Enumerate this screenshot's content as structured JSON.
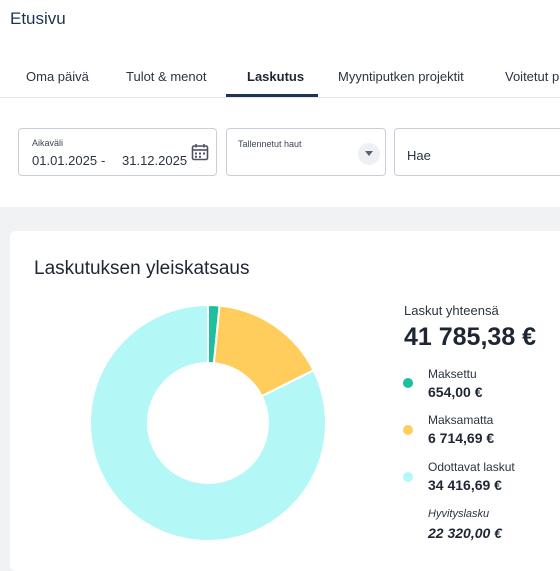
{
  "header": {
    "title": "Etusivu"
  },
  "tabs": [
    {
      "label": "Oma päivä",
      "active": false
    },
    {
      "label": "Tulot & menot",
      "active": false
    },
    {
      "label": "Laskutus",
      "active": true
    },
    {
      "label": "Myyntiputken projektit",
      "active": false
    },
    {
      "label": "Voitetut p",
      "active": false
    }
  ],
  "filters": {
    "date_range": {
      "label": "Aikaväli",
      "start": "01.01.2025",
      "separator": "-",
      "end": "31.12.2025",
      "icon": "calendar-icon"
    },
    "saved_searches": {
      "label": "Tallennetut haut",
      "value": "",
      "icon": "chevron-down-icon"
    },
    "search": {
      "value": "Hae"
    }
  },
  "overview": {
    "title": "Laskutuksen yleiskatsaus",
    "total_label": "Laskut yhteensä",
    "total_value": "41 785,38 €",
    "legend": [
      {
        "label": "Maksettu",
        "value": "654,00 €",
        "color": "#1fbf9b"
      },
      {
        "label": "Maksamatta",
        "value": "6 714,69 €",
        "color": "#ffcd5c"
      },
      {
        "label": "Odottavat laskut",
        "value": "34 416,69 €",
        "color": "#b3f7f7"
      }
    ],
    "credit_label": "Hyvityslasku",
    "credit_value": "22 320,00 €"
  },
  "chart_data": {
    "type": "pie",
    "donut": true,
    "title": "Laskutuksen yleiskatsaus",
    "categories": [
      "Maksettu",
      "Maksamatta",
      "Odottavat laskut"
    ],
    "values": [
      654.0,
      6714.69,
      34416.69
    ],
    "colors": [
      "#1fbf9b",
      "#ffcd5c",
      "#b3f7f7"
    ],
    "legend": "right"
  }
}
